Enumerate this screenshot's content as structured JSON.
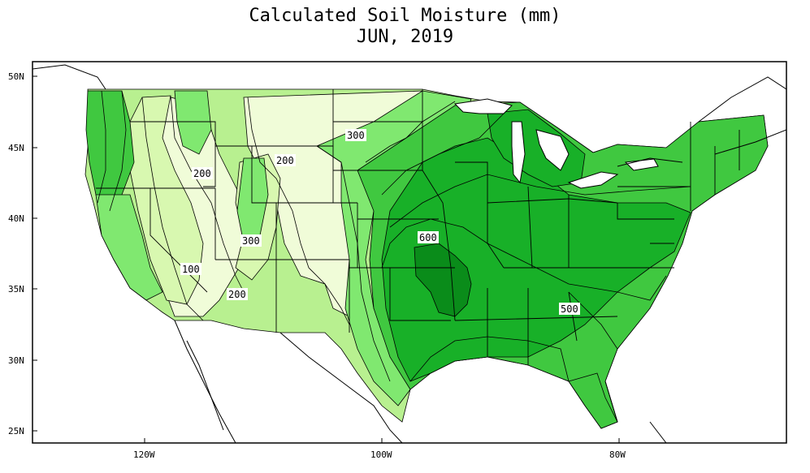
{
  "title": "Calculated Soil Moisture (mm)",
  "subtitle": "JUN, 2019",
  "axes": {
    "lat_ticks": [
      "50N",
      "45N",
      "40N",
      "35N",
      "30N",
      "25N"
    ],
    "lon_ticks": [
      "120W",
      "100W",
      "80W"
    ]
  },
  "contour_labels": [
    "100",
    "200",
    "200",
    "200",
    "300",
    "300",
    "500",
    "600"
  ],
  "colors": {
    "level_100": "#f0fcd8",
    "level_200": "#d8f8b0",
    "level_300": "#b8f090",
    "level_400": "#80e870",
    "level_500": "#40c840",
    "level_600": "#18b028",
    "level_700": "#0a8c1a",
    "land_outline": "#000000",
    "background": "#ffffff"
  }
}
